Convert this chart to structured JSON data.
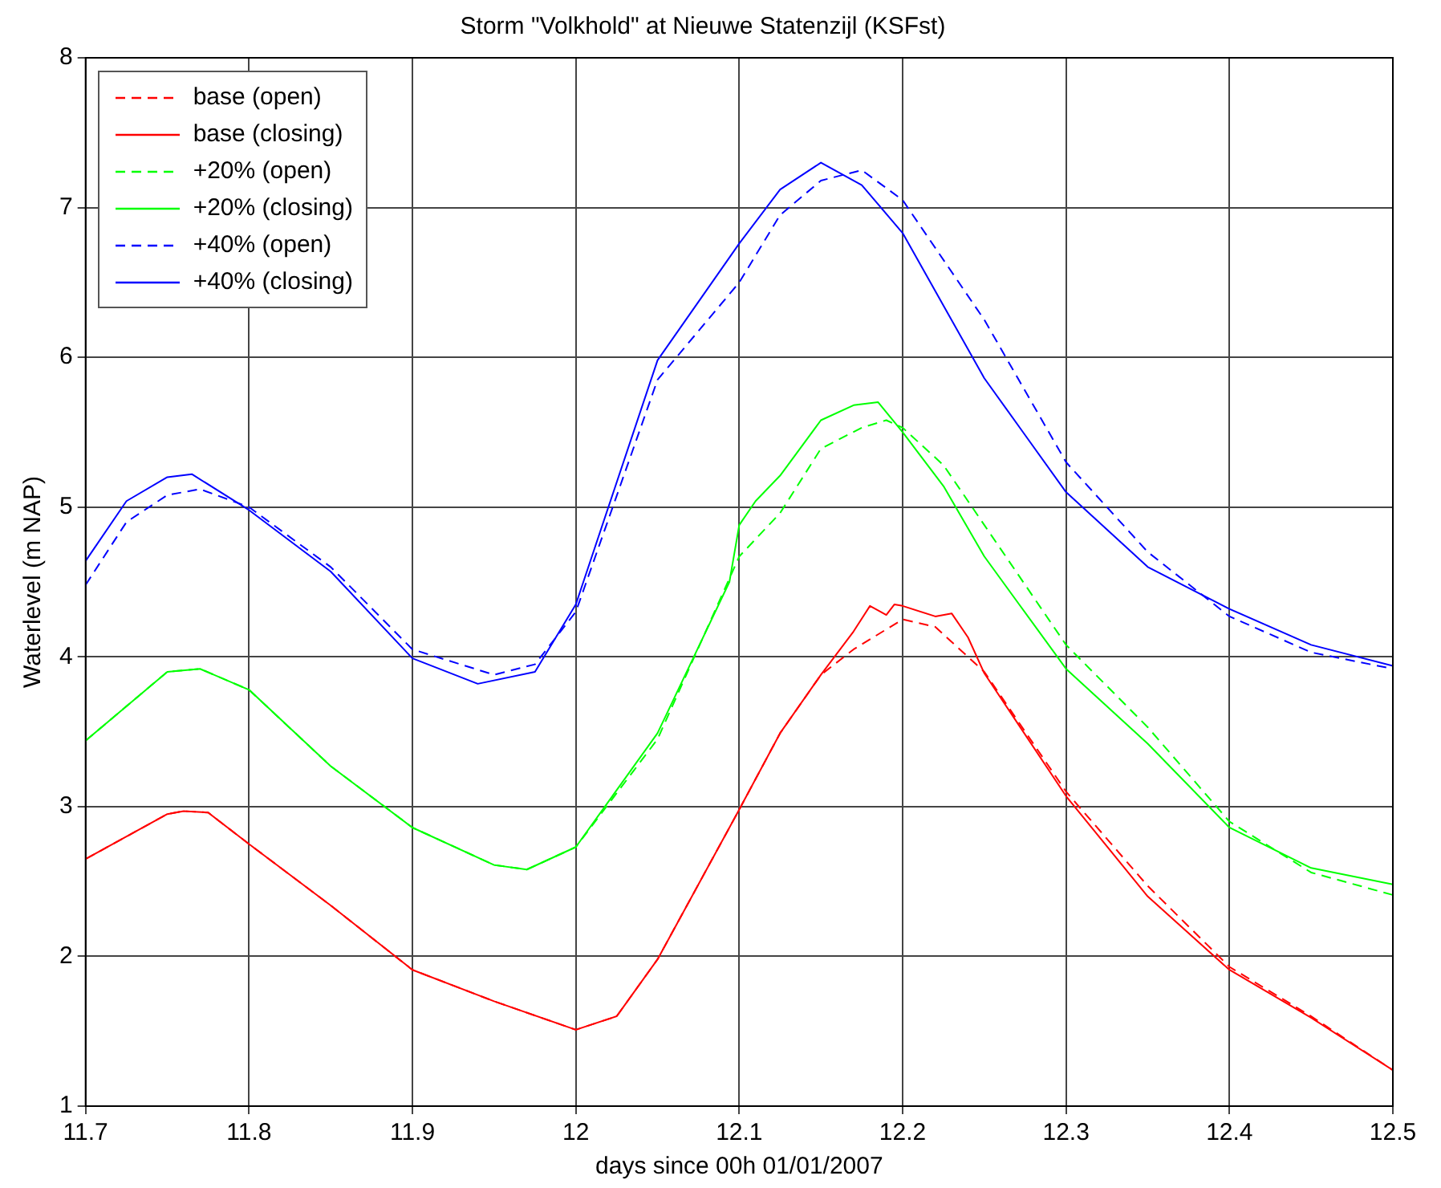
{
  "chart_data": {
    "type": "line",
    "title": "Storm \"Volkhold\" at Nieuwe Statenzijl (KSFst)",
    "xlabel": "days since 00h 01/01/2007",
    "ylabel": "Waterlevel (m NAP)",
    "xlim": [
      11.7,
      12.5
    ],
    "xticks": [
      11.7,
      11.8,
      11.9,
      12,
      12.1,
      12.2,
      12.3,
      12.4,
      12.5
    ],
    "ylim": [
      1,
      8
    ],
    "yticks": [
      1,
      2,
      3,
      4,
      5,
      6,
      7,
      8
    ],
    "grid": true,
    "legend": "top left",
    "marker": "none",
    "series": [
      {
        "name": "base (open)",
        "color": "#ff0000",
        "line_style": "dashed",
        "x": [
          11.7,
          11.725,
          11.75,
          11.76,
          11.775,
          11.8,
          11.85,
          11.9,
          11.95,
          12,
          12.025,
          12.05,
          12.1,
          12.125,
          12.15,
          12.17,
          12.2,
          12.22,
          12.25,
          12.3,
          12.35,
          12.4,
          12.45,
          12.5
        ],
        "values": [
          2.65,
          2.8,
          2.95,
          2.97,
          2.96,
          2.75,
          2.34,
          1.91,
          1.7,
          1.51,
          1.6,
          1.98,
          2.98,
          3.49,
          3.88,
          4.05,
          4.25,
          4.2,
          3.9,
          3.1,
          2.47,
          1.93,
          1.6,
          1.24
        ]
      },
      {
        "name": "base (closing)",
        "color": "#ff0000",
        "line_style": "solid",
        "x": [
          11.7,
          11.725,
          11.75,
          11.76,
          11.775,
          11.8,
          11.85,
          11.9,
          11.95,
          12,
          12.025,
          12.05,
          12.1,
          12.125,
          12.15,
          12.17,
          12.18,
          12.19,
          12.195,
          12.2,
          12.22,
          12.23,
          12.24,
          12.25,
          12.3,
          12.35,
          12.4,
          12.45,
          12.5
        ],
        "values": [
          2.65,
          2.8,
          2.95,
          2.97,
          2.96,
          2.75,
          2.34,
          1.91,
          1.7,
          1.51,
          1.6,
          1.98,
          2.98,
          3.49,
          3.88,
          4.17,
          4.34,
          4.28,
          4.35,
          4.34,
          4.27,
          4.29,
          4.13,
          3.89,
          3.07,
          2.4,
          1.91,
          1.59,
          1.24
        ]
      },
      {
        "name": "+20% (open)",
        "color": "#00ff00",
        "line_style": "dashed",
        "x": [
          11.7,
          11.75,
          11.77,
          11.8,
          11.85,
          11.9,
          11.95,
          11.97,
          12,
          12.05,
          12.1,
          12.125,
          12.15,
          12.175,
          12.19,
          12.2,
          12.225,
          12.25,
          12.3,
          12.35,
          12.4,
          12.45,
          12.5
        ],
        "values": [
          3.44,
          3.9,
          3.92,
          3.78,
          3.27,
          2.86,
          2.61,
          2.58,
          2.73,
          3.45,
          4.67,
          4.96,
          5.39,
          5.53,
          5.58,
          5.53,
          5.28,
          4.88,
          4.08,
          3.53,
          2.9,
          2.56,
          2.41
        ]
      },
      {
        "name": "+20% (closing)",
        "color": "#00ff00",
        "line_style": "solid",
        "x": [
          11.7,
          11.75,
          11.77,
          11.8,
          11.85,
          11.9,
          11.95,
          11.97,
          12,
          12.05,
          12.094,
          12.1,
          12.11,
          12.125,
          12.15,
          12.17,
          12.185,
          12.2,
          12.225,
          12.25,
          12.3,
          12.35,
          12.4,
          12.45,
          12.5
        ],
        "values": [
          3.44,
          3.9,
          3.92,
          3.78,
          3.27,
          2.86,
          2.61,
          2.58,
          2.73,
          3.49,
          4.5,
          4.88,
          5.04,
          5.21,
          5.58,
          5.68,
          5.7,
          5.5,
          5.14,
          4.67,
          3.92,
          3.42,
          2.86,
          2.59,
          2.48
        ]
      },
      {
        "name": "+40% (open)",
        "color": "#0000ff",
        "line_style": "dashed",
        "x": [
          11.7,
          11.725,
          11.75,
          11.77,
          11.8,
          11.85,
          11.9,
          11.95,
          11.975,
          12,
          12.05,
          12.1,
          12.125,
          12.15,
          12.175,
          12.2,
          12.25,
          12.3,
          12.35,
          12.4,
          12.45,
          12.5
        ],
        "values": [
          4.48,
          4.9,
          5.08,
          5.12,
          5,
          4.6,
          4.05,
          3.88,
          3.95,
          4.3,
          5.85,
          6.5,
          6.95,
          7.18,
          7.25,
          7.05,
          6.25,
          5.3,
          4.7,
          4.27,
          4.03,
          3.92
        ]
      },
      {
        "name": "+40% (closing)",
        "color": "#0000ff",
        "line_style": "solid",
        "x": [
          11.7,
          11.725,
          11.75,
          11.765,
          11.8,
          11.85,
          11.9,
          11.94,
          11.975,
          12,
          12.05,
          12.1,
          12.125,
          12.15,
          12.175,
          12.2,
          12.25,
          12.3,
          12.35,
          12.4,
          12.45,
          12.5
        ],
        "values": [
          4.64,
          5.04,
          5.2,
          5.22,
          4.98,
          4.57,
          3.99,
          3.82,
          3.9,
          4.35,
          5.98,
          6.76,
          7.12,
          7.3,
          7.15,
          6.83,
          5.86,
          5.1,
          4.6,
          4.32,
          4.08,
          3.94
        ]
      }
    ]
  }
}
